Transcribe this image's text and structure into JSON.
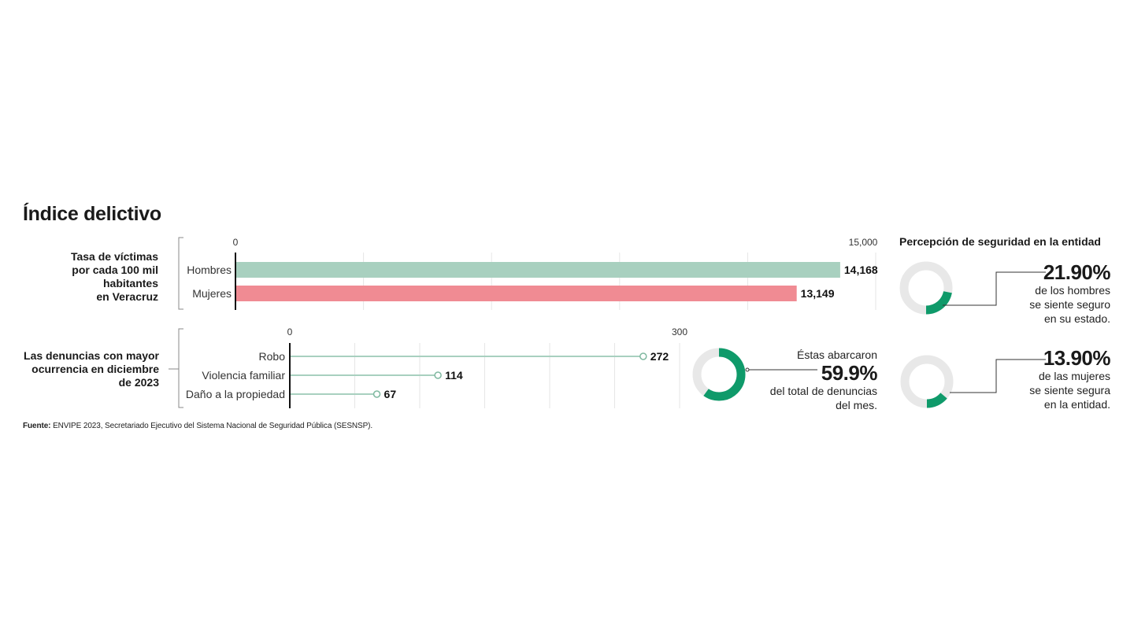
{
  "title": "Índice delictivo",
  "chart_data": [
    {
      "type": "bar",
      "label": [
        "Tasa de víctimas",
        "por cada 100 mil habitantes",
        "en Veracruz"
      ],
      "xlim": [
        0,
        15000
      ],
      "tick_labels": [
        "0",
        "15,000"
      ],
      "categories": [
        "Hombres",
        "Mujeres"
      ],
      "values": [
        14168,
        13149
      ],
      "value_labels": [
        "14,168",
        "13,149"
      ],
      "colors": [
        "#a8d0bf",
        "#f08b93"
      ],
      "gridlines": 5
    },
    {
      "type": "lollipop",
      "label": [
        "Las denuncias con mayor",
        "ocurrencia en diciembre",
        "de 2023"
      ],
      "xlim": [
        0,
        300
      ],
      "tick_labels": [
        "0",
        "300"
      ],
      "categories": [
        "Robo",
        "Violencia familiar",
        "Daño a la propiedad"
      ],
      "values": [
        272,
        114,
        67
      ],
      "value_labels": [
        "272",
        "114",
        "67"
      ],
      "color": "#a8d0bf",
      "gridlines": 6
    },
    {
      "type": "pie",
      "title": "Percepción de seguridad en la entidad",
      "slices": [
        {
          "value": 21.9,
          "big_label": "21.90%",
          "text": [
            "de los hombres",
            "se siente seguro",
            "en su estado."
          ]
        },
        {
          "value": 13.9,
          "big_label": "13.90%",
          "text": [
            "de las mujeres",
            "se siente segura",
            "en la entidad."
          ]
        }
      ]
    },
    {
      "type": "pie",
      "value": 59.9,
      "lead": "Éstas abarcaron",
      "big_label": "59.9%",
      "text": [
        "del total de denuncias",
        "del mes."
      ]
    }
  ],
  "colors": {
    "accent": "#0f9a6a",
    "ring_bg": "#e8e8e8",
    "grid": "#e6e6e6"
  },
  "source": {
    "label": "Fuente:",
    "text": " ENVIPE 2023, Secretariado Ejecutivo del Sistema Nacional de Seguridad Pública (SESNSP)."
  }
}
